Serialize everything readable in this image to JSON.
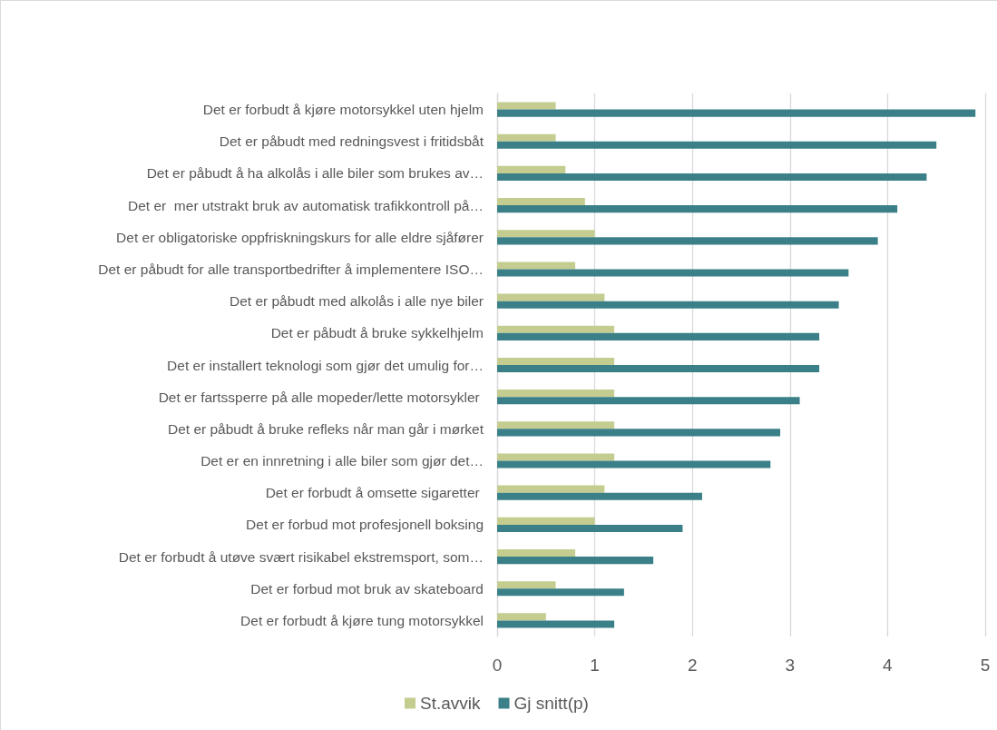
{
  "chart_data": {
    "type": "bar",
    "orientation": "horizontal",
    "categories": [
      "Det er forbudt å kjøre motorsykkel uten hjelm",
      "Det er påbudt med redningsvest i fritidsbåt",
      "Det er påbudt å ha alkolås i alle biler som brukes av…",
      "Det er  mer utstrakt bruk av automatisk trafikkontroll på…",
      "Det er obligatoriske oppfriskningskurs for alle eldre sjåfører",
      "Det er påbudt for alle transportbedrifter å implementere ISO…",
      "Det er påbudt med alkolås i alle nye biler",
      "Det er påbudt å bruke sykkelhjelm",
      "Det er installert teknologi som gjør det umulig for…",
      "Det er fartssperre på alle mopeder/lette motorsykler ",
      "Det er påbudt å bruke refleks når man går i mørket",
      "Det er en innretning i alle biler som gjør det…",
      "Det er forbudt å omsette sigaretter ",
      "Det er forbud mot profesjonell boksing",
      "Det er forbudt å utøve svært risikabel ekstremsport, som…",
      "Det er forbud mot bruk av skateboard",
      "Det er forbudt å kjøre tung motorsykkel"
    ],
    "series": [
      {
        "name": "St.avvik",
        "color": "#c5cc8f",
        "values": [
          0.6,
          0.6,
          0.7,
          0.9,
          1.0,
          0.8,
          1.1,
          1.2,
          1.2,
          1.2,
          1.2,
          1.2,
          1.1,
          1.0,
          0.8,
          0.6,
          0.5
        ]
      },
      {
        "name": "Gj snitt(p)",
        "color": "#3b8088",
        "values": [
          4.9,
          4.5,
          4.4,
          4.1,
          3.9,
          3.6,
          3.5,
          3.3,
          3.3,
          3.1,
          2.9,
          2.8,
          2.1,
          1.9,
          1.6,
          1.3,
          1.2
        ]
      }
    ],
    "xlim": [
      0,
      5
    ],
    "xticks": [
      0,
      1,
      2,
      3,
      4,
      5
    ],
    "grid": "x",
    "legend": "bottom"
  }
}
